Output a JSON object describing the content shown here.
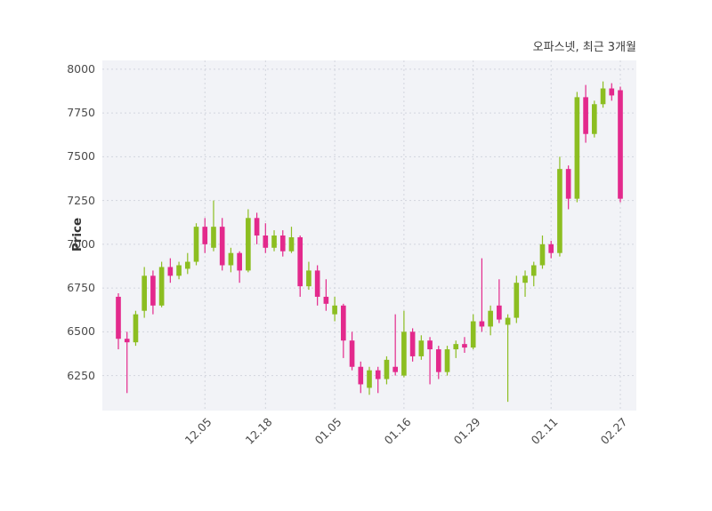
{
  "chart_data": {
    "type": "candlestick",
    "title": "오파스넷, 최근 3개월",
    "ylabel": "Price",
    "ylim": [
      6050,
      8050
    ],
    "y_ticks": [
      6250,
      6500,
      6750,
      7000,
      7250,
      7500,
      7750,
      8000
    ],
    "x_ticks": [
      {
        "index": 10,
        "label": "12.05"
      },
      {
        "index": 17,
        "label": "12.18"
      },
      {
        "index": 25,
        "label": "01.05"
      },
      {
        "index": 33,
        "label": "01.16"
      },
      {
        "index": 41,
        "label": "01.29"
      },
      {
        "index": 50,
        "label": "02.11"
      },
      {
        "index": 58,
        "label": "02.27"
      }
    ],
    "colors": {
      "up": "#8cbe21",
      "down": "#e3298c",
      "plot_bg": "#f2f3f7",
      "grid": "#d2d5de",
      "text": "#4b4b4b",
      "title_text": "#3b3b3b"
    },
    "grid": "dashed",
    "legend": "none",
    "candles_format": "open,high,low,close",
    "candles": [
      [
        6700,
        6720,
        6400,
        6460
      ],
      [
        6460,
        6500,
        6150,
        6440
      ],
      [
        6440,
        6620,
        6420,
        6600
      ],
      [
        6620,
        6870,
        6580,
        6820
      ],
      [
        6820,
        6850,
        6600,
        6650
      ],
      [
        6650,
        6900,
        6640,
        6870
      ],
      [
        6870,
        6920,
        6780,
        6820
      ],
      [
        6820,
        6900,
        6800,
        6880
      ],
      [
        6860,
        6950,
        6830,
        6900
      ],
      [
        6900,
        7120,
        6880,
        7100
      ],
      [
        7100,
        7150,
        6950,
        7000
      ],
      [
        6980,
        7250,
        6960,
        7100
      ],
      [
        7100,
        7150,
        6850,
        6880
      ],
      [
        6880,
        6980,
        6840,
        6950
      ],
      [
        6950,
        6960,
        6780,
        6850
      ],
      [
        6850,
        7200,
        6840,
        7150
      ],
      [
        7150,
        7180,
        7000,
        7050
      ],
      [
        7050,
        7120,
        6950,
        6980
      ],
      [
        6980,
        7080,
        6960,
        7050
      ],
      [
        7050,
        7080,
        6930,
        6960
      ],
      [
        6960,
        7100,
        6950,
        7040
      ],
      [
        7040,
        7050,
        6700,
        6760
      ],
      [
        6760,
        6900,
        6740,
        6850
      ],
      [
        6850,
        6880,
        6650,
        6700
      ],
      [
        6700,
        6800,
        6620,
        6660
      ],
      [
        6600,
        6700,
        6560,
        6650
      ],
      [
        6650,
        6660,
        6350,
        6450
      ],
      [
        6450,
        6500,
        6280,
        6300
      ],
      [
        6300,
        6330,
        6150,
        6200
      ],
      [
        6180,
        6300,
        6140,
        6280
      ],
      [
        6280,
        6300,
        6150,
        6230
      ],
      [
        6230,
        6360,
        6200,
        6340
      ],
      [
        6300,
        6600,
        6250,
        6270
      ],
      [
        6250,
        6620,
        6240,
        6500
      ],
      [
        6500,
        6520,
        6330,
        6360
      ],
      [
        6360,
        6480,
        6340,
        6450
      ],
      [
        6450,
        6470,
        6200,
        6400
      ],
      [
        6400,
        6420,
        6230,
        6270
      ],
      [
        6270,
        6420,
        6250,
        6400
      ],
      [
        6400,
        6450,
        6350,
        6430
      ],
      [
        6430,
        6470,
        6380,
        6410
      ],
      [
        6410,
        6600,
        6400,
        6560
      ],
      [
        6560,
        6920,
        6500,
        6530
      ],
      [
        6530,
        6650,
        6480,
        6620
      ],
      [
        6650,
        6800,
        6550,
        6570
      ],
      [
        6540,
        6600,
        6100,
        6580
      ],
      [
        6580,
        6820,
        6550,
        6780
      ],
      [
        6780,
        6850,
        6700,
        6820
      ],
      [
        6820,
        6900,
        6760,
        6880
      ],
      [
        6880,
        7050,
        6860,
        7000
      ],
      [
        7000,
        7020,
        6920,
        6950
      ],
      [
        6950,
        7500,
        6930,
        7430
      ],
      [
        7430,
        7450,
        7200,
        7260
      ],
      [
        7260,
        7870,
        7240,
        7840
      ],
      [
        7840,
        7910,
        7580,
        7630
      ],
      [
        7630,
        7820,
        7610,
        7800
      ],
      [
        7800,
        7930,
        7780,
        7890
      ],
      [
        7890,
        7920,
        7820,
        7850
      ],
      [
        7880,
        7900,
        7240,
        7260
      ]
    ]
  }
}
